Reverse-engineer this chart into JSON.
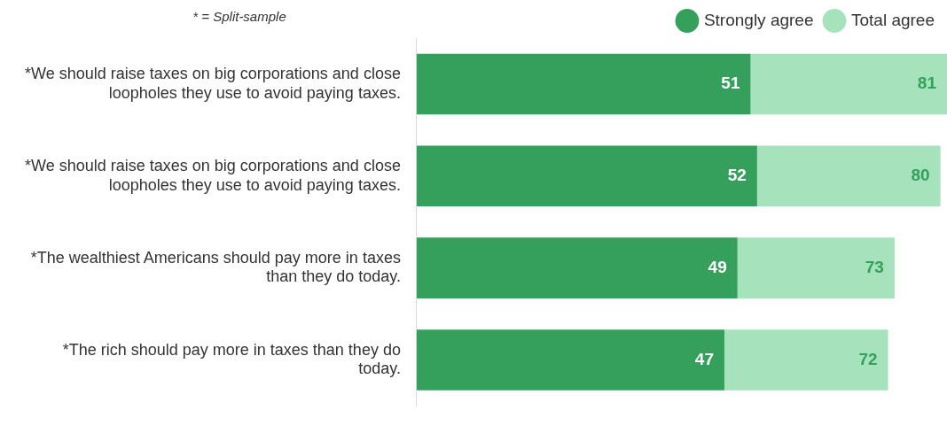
{
  "chart_data": {
    "type": "bar",
    "orientation": "horizontal",
    "stacked": true,
    "categories": [
      "*We should raise taxes on big corporations and close loopholes they use to avoid paying taxes.",
      "*We should raise taxes on big corporations and close loopholes they use to avoid paying taxes.",
      "*The wealthiest Americans should pay more in taxes than they do today.",
      "*The rich should pay more in taxes than they do today."
    ],
    "series": [
      {
        "name": "Strongly agree",
        "color": "#34a05c",
        "values": [
          51,
          52,
          49,
          47
        ],
        "value_labels": [
          "51",
          "52",
          "49",
          "47"
        ]
      },
      {
        "name": "Total agree",
        "color": "#a6e3bd",
        "values": [
          30,
          28,
          24,
          25
        ]
      }
    ],
    "totals": [
      "81",
      "80",
      "73",
      "72"
    ],
    "xlim": [
      0,
      81
    ],
    "tick_labels": "y",
    "legend": "top right",
    "grid": false,
    "annotations": [
      "* = Split-sample"
    ]
  }
}
